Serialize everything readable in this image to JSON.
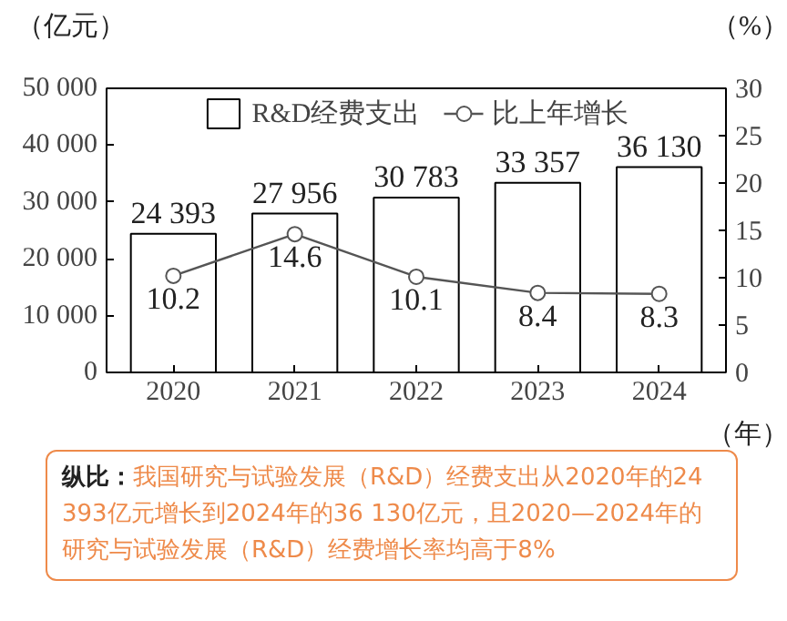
{
  "chart_data": {
    "type": "bar",
    "categories": [
      "2020",
      "2021",
      "2022",
      "2023",
      "2024"
    ],
    "series": [
      {
        "name": "R&D经费支出",
        "color": "#ffffff",
        "values": [
          24393,
          27956,
          30783,
          33357,
          36130
        ],
        "value_labels": [
          "24 393",
          "27 956",
          "30 783",
          "33 357",
          "36 130"
        ]
      },
      {
        "name": "比上年增长",
        "type": "line",
        "axis": "y2",
        "color": "#555555",
        "marker": "circle",
        "values": [
          10.2,
          14.6,
          10.1,
          8.4,
          8.3
        ],
        "value_labels": [
          "10.2",
          "14.6",
          "10.1",
          "8.4",
          "8.3"
        ]
      }
    ],
    "ylabel": "（亿元）",
    "y2label": "（%）",
    "xlabel": "（年）",
    "ylim": [
      0,
      50000
    ],
    "yticks": [
      {
        "value": 0,
        "label": "0"
      },
      {
        "value": 10000,
        "label": "10 000"
      },
      {
        "value": 20000,
        "label": "20 000"
      },
      {
        "value": 30000,
        "label": "30 000"
      },
      {
        "value": 40000,
        "label": "40 000"
      },
      {
        "value": 50000,
        "label": "50 000"
      }
    ],
    "y2lim": [
      0,
      30
    ],
    "y2ticks": [
      0,
      5,
      10,
      15,
      20,
      25,
      30
    ],
    "legend": "top",
    "grid": false,
    "annotations": [
      "纵比：",
      "我国研究与试验发展（R&D）经费支出从2020年的24 393亿元增长到2024年的36 130亿元，且2020—2024年的研究与试验发展（R&D）经费增长率均高于8%"
    ]
  }
}
